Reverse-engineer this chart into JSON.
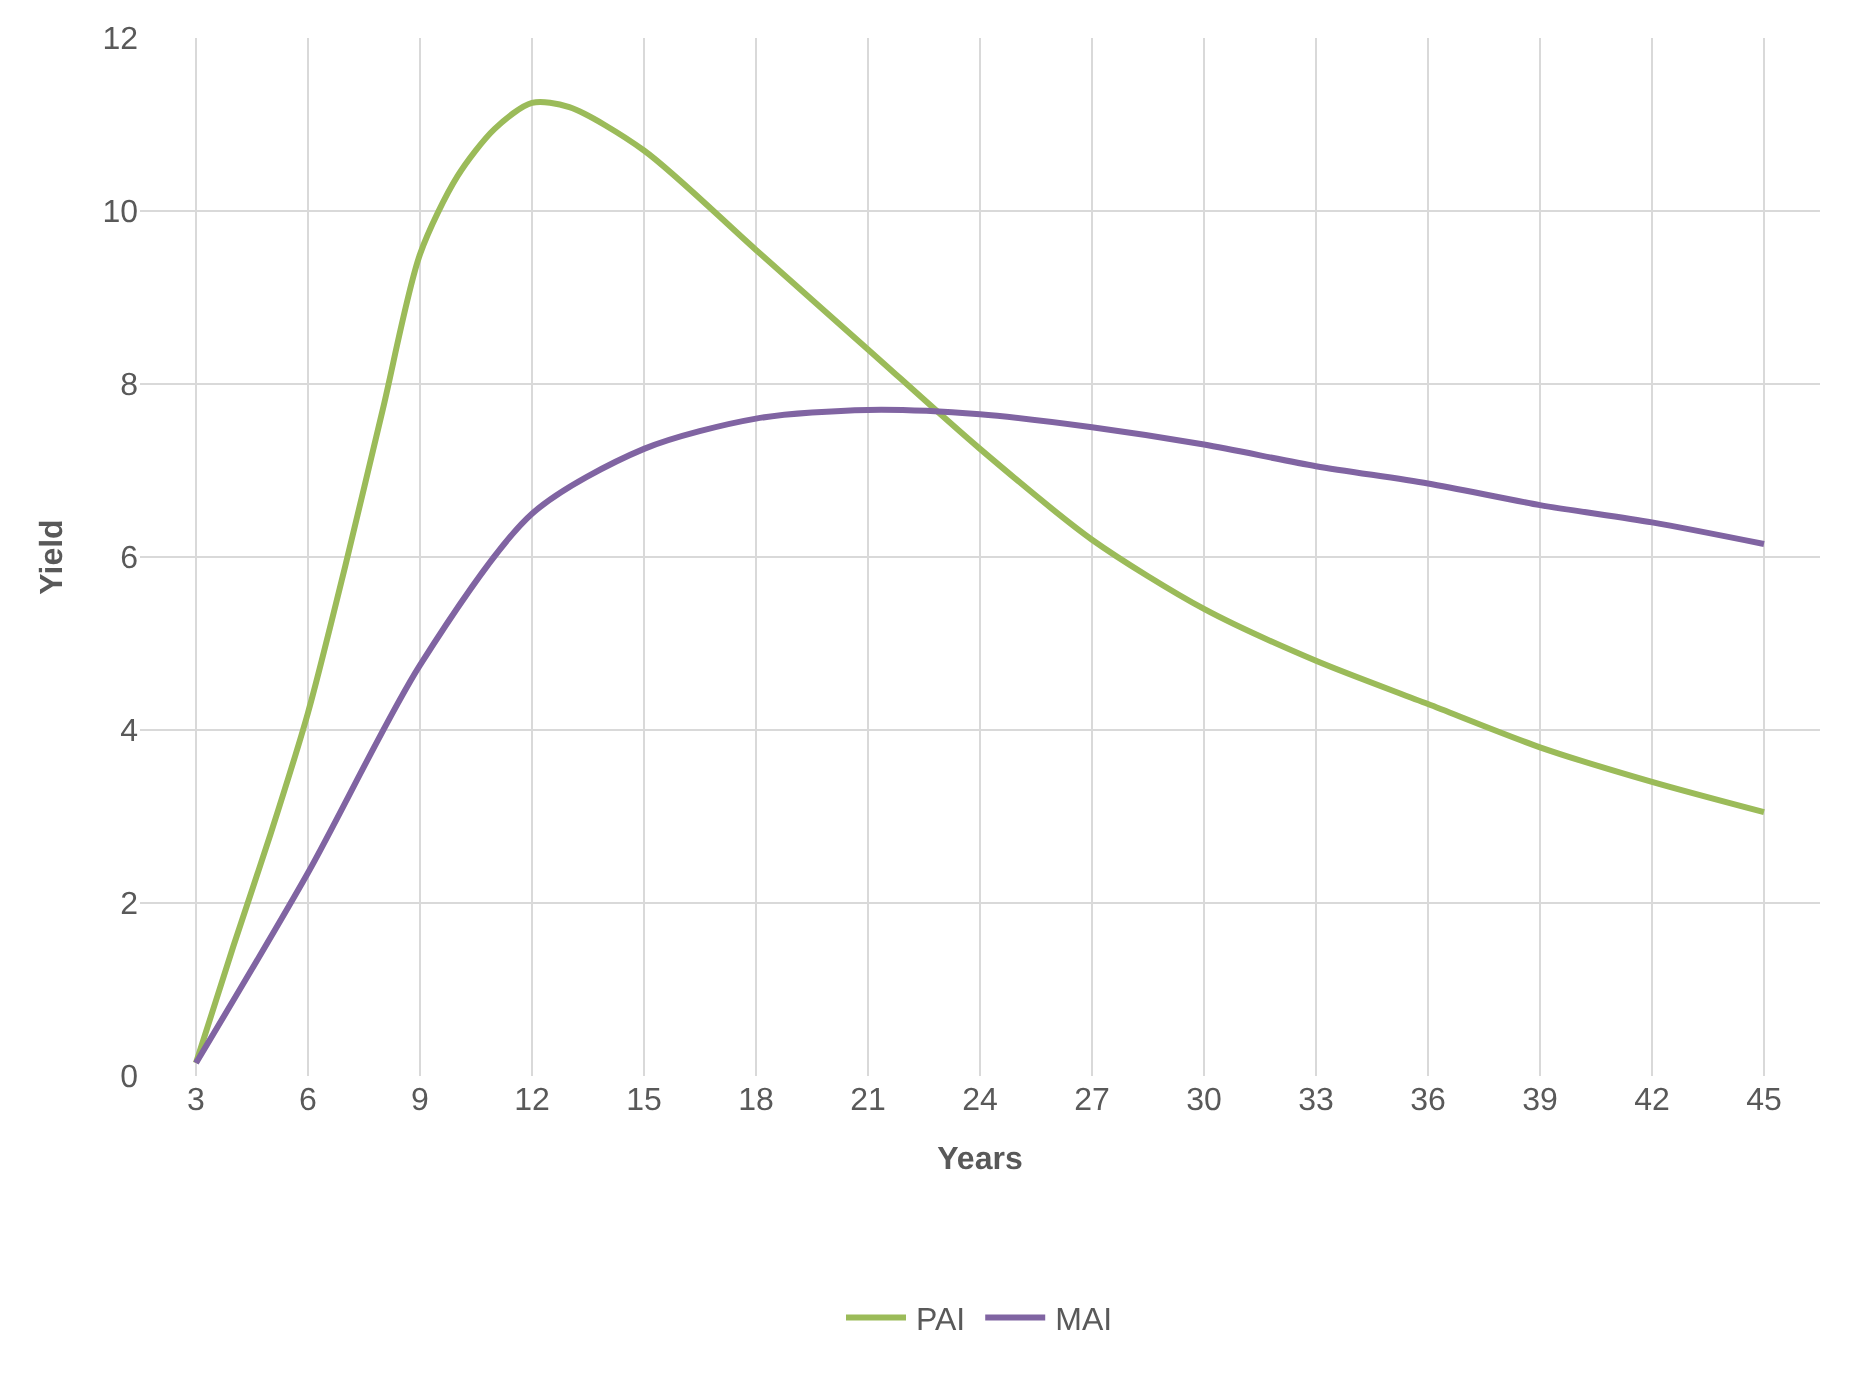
{
  "chart_data": {
    "type": "line",
    "xlabel": "Years",
    "ylabel": "Yield",
    "xlim": [
      1.5,
      46.5
    ],
    "xticks": [
      3,
      6,
      9,
      12,
      15,
      18,
      21,
      24,
      27,
      30,
      33,
      36,
      39,
      42,
      45
    ],
    "ylim": [
      0,
      12
    ],
    "yticks": [
      0,
      2,
      4,
      6,
      8,
      10,
      12
    ],
    "grid": true,
    "legend": "bottom",
    "marker": "none",
    "line_style": "solid",
    "series": [
      {
        "name": "PAI",
        "color": "#9bbb59",
        "x": [
          3,
          4,
          5,
          6,
          7,
          8,
          9,
          10,
          11,
          12,
          13,
          15,
          18,
          21,
          24,
          27,
          30,
          33,
          36,
          39,
          42,
          45
        ],
        "values": [
          0.15,
          1.5,
          2.8,
          4.2,
          5.9,
          7.7,
          9.5,
          10.4,
          10.95,
          11.25,
          11.2,
          10.7,
          9.55,
          8.4,
          7.25,
          6.2,
          5.4,
          4.8,
          4.3,
          3.8,
          3.4,
          3.05
        ]
      },
      {
        "name": "MAI",
        "color": "#8064a2",
        "x": [
          3,
          6,
          9,
          12,
          15,
          18,
          21,
          24,
          27,
          30,
          33,
          36,
          39,
          42,
          45
        ],
        "values": [
          0.15,
          2.35,
          4.75,
          6.5,
          7.25,
          7.6,
          7.7,
          7.65,
          7.5,
          7.3,
          7.05,
          6.85,
          6.6,
          6.4,
          6.15
        ]
      }
    ]
  }
}
